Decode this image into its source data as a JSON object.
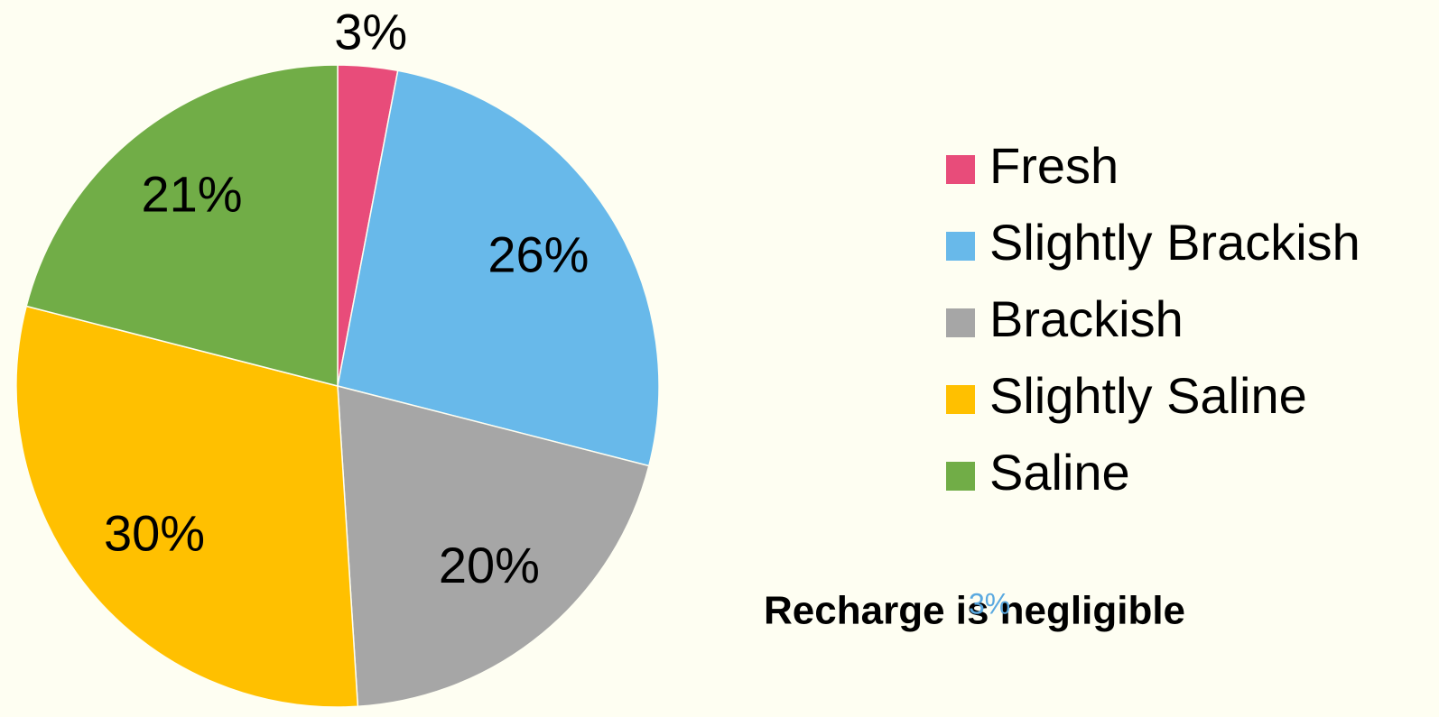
{
  "chart_data": {
    "type": "pie",
    "categories": [
      "Fresh",
      "Slightly Brackish",
      "Brackish",
      "Slightly Saline",
      "Saline"
    ],
    "values": [
      3,
      26,
      20,
      30,
      21
    ],
    "value_labels": [
      "3%",
      "26%",
      "20%",
      "30%",
      "21%"
    ],
    "colors": [
      "#e84c7a",
      "#68b9ea",
      "#a6a6a6",
      "#ffc000",
      "#71ad47"
    ],
    "legend": "right",
    "annotation": "Recharge is negligible",
    "annotation_overlay": "3%"
  }
}
